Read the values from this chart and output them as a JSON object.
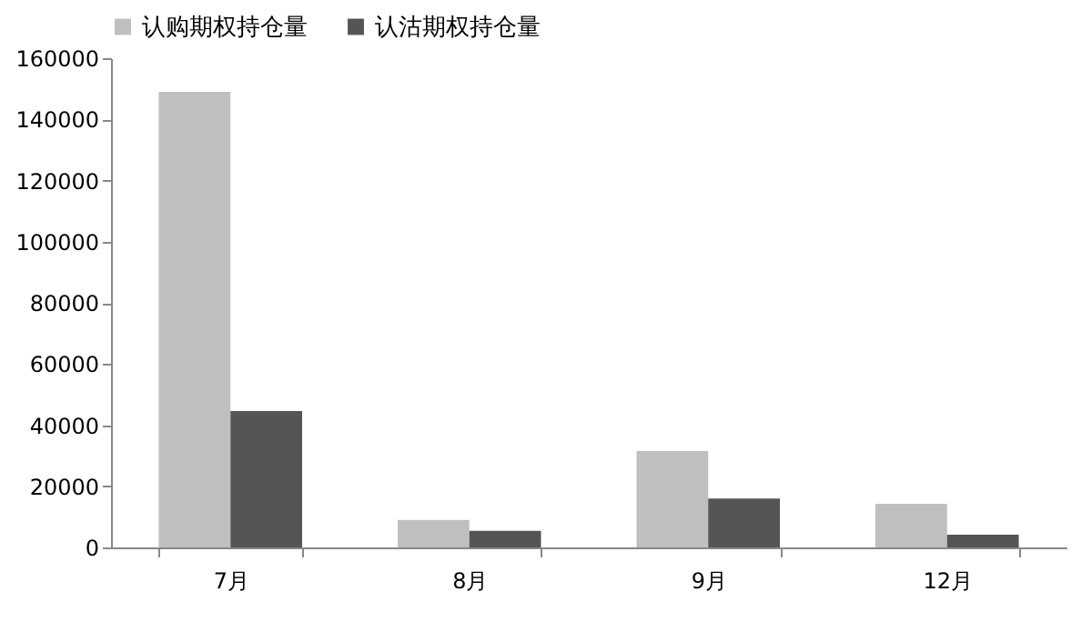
{
  "chart_data": {
    "type": "bar",
    "categories": [
      "7月",
      "8月",
      "9月",
      "12月"
    ],
    "series": [
      {
        "name": "认购期权持仓量",
        "color": "#bfbfbf",
        "values": [
          149000,
          9000,
          31500,
          14300
        ]
      },
      {
        "name": "认沽期权持仓量",
        "color": "#555555",
        "values": [
          44600,
          5400,
          16000,
          4200
        ]
      }
    ],
    "ylim": [
      0,
      160000
    ],
    "yticks": [
      0,
      20000,
      40000,
      60000,
      80000,
      100000,
      120000,
      140000,
      160000
    ],
    "grid": false,
    "legend": "top"
  }
}
